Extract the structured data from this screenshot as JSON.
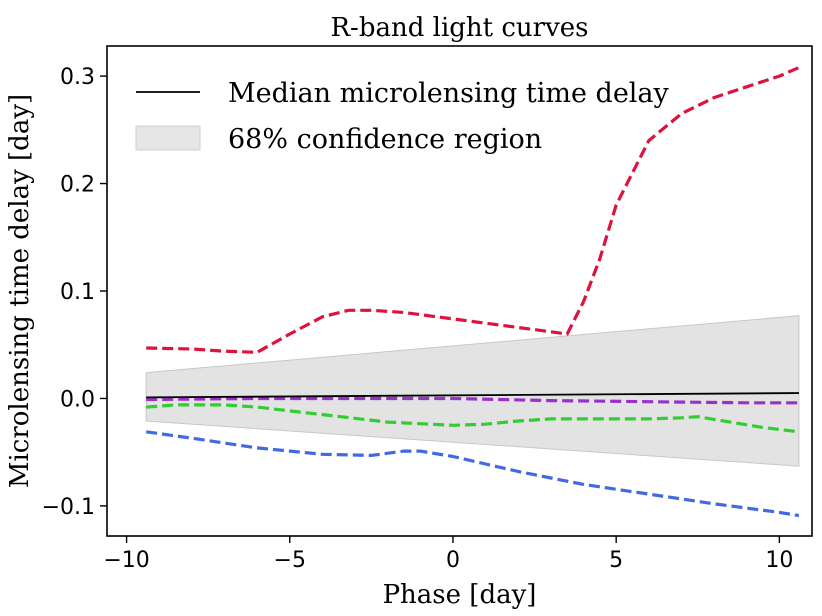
{
  "chart_data": {
    "type": "line",
    "title": "R-band light curves",
    "xlabel": "Phase [day]",
    "ylabel": "Microlensing time delay [day]",
    "xlim": [
      -10.6,
      11.0
    ],
    "ylim": [
      -0.128,
      0.328
    ],
    "xticks": [
      -10,
      -5,
      0,
      5,
      10
    ],
    "xtick_labels": [
      "−10",
      "−5",
      "0",
      "5",
      "10"
    ],
    "yticks": [
      -0.1,
      0.0,
      0.1,
      0.2,
      0.3
    ],
    "ytick_labels": [
      "−0.1",
      "0.0",
      "0.1",
      "0.2",
      "0.3"
    ],
    "legend": {
      "position": "top-left",
      "entries": [
        {
          "label": "Median microlensing time delay",
          "type": "line",
          "color": "#000000"
        },
        {
          "label": "68% confidence region",
          "type": "band",
          "color": "#e6e6e6"
        }
      ]
    },
    "median": {
      "name": "Median microlensing time delay",
      "color": "#000000",
      "x": [
        -9.4,
        10.6
      ],
      "y": [
        0.001,
        0.005
      ]
    },
    "band": {
      "name": "68% confidence region",
      "color": "#e3e3e3",
      "edge_color": "#c8c8c8",
      "x": [
        -9.4,
        10.6
      ],
      "upper": [
        0.024,
        0.077
      ],
      "lower": [
        -0.021,
        -0.063
      ]
    },
    "series": [
      {
        "name": "red",
        "color": "#dc143c",
        "style": "dashed",
        "x": [
          -9.4,
          -8,
          -7,
          -6,
          -5,
          -4,
          -3.2,
          -2.5,
          -1.5,
          0,
          1,
          2,
          3,
          3.5,
          4,
          4.5,
          5,
          5.5,
          6,
          7,
          8,
          9,
          10,
          10.6
        ],
        "y": [
          0.047,
          0.046,
          0.044,
          0.043,
          0.06,
          0.076,
          0.082,
          0.082,
          0.08,
          0.074,
          0.07,
          0.066,
          0.062,
          0.06,
          0.09,
          0.13,
          0.18,
          0.21,
          0.24,
          0.265,
          0.28,
          0.29,
          0.3,
          0.308
        ]
      },
      {
        "name": "purple",
        "color": "#9932cc",
        "style": "dashed",
        "x": [
          -9.4,
          -6,
          -3,
          0,
          3,
          6,
          9,
          10.6
        ],
        "y": [
          -0.001,
          0.0,
          0.0,
          0.0,
          -0.002,
          -0.003,
          -0.004,
          -0.004
        ]
      },
      {
        "name": "green",
        "color": "#32cd32",
        "style": "dashed",
        "x": [
          -9.4,
          -8.5,
          -7,
          -6,
          -4,
          -2,
          0,
          1,
          2,
          3,
          5,
          6,
          7,
          7.5,
          8.5,
          9.5,
          10.6
        ],
        "y": [
          -0.008,
          -0.006,
          -0.006,
          -0.008,
          -0.015,
          -0.022,
          -0.025,
          -0.024,
          -0.021,
          -0.019,
          -0.019,
          -0.019,
          -0.018,
          -0.017,
          -0.022,
          -0.027,
          -0.031
        ]
      },
      {
        "name": "blue",
        "color": "#4169e1",
        "style": "dashed",
        "x": [
          -9.4,
          -8,
          -6,
          -4,
          -2.5,
          -1.5,
          -1,
          0,
          1,
          2,
          3,
          4,
          6,
          8,
          10,
          10.6
        ],
        "y": [
          -0.031,
          -0.037,
          -0.046,
          -0.052,
          -0.053,
          -0.049,
          -0.049,
          -0.054,
          -0.061,
          -0.068,
          -0.074,
          -0.08,
          -0.089,
          -0.098,
          -0.106,
          -0.109
        ]
      }
    ]
  }
}
